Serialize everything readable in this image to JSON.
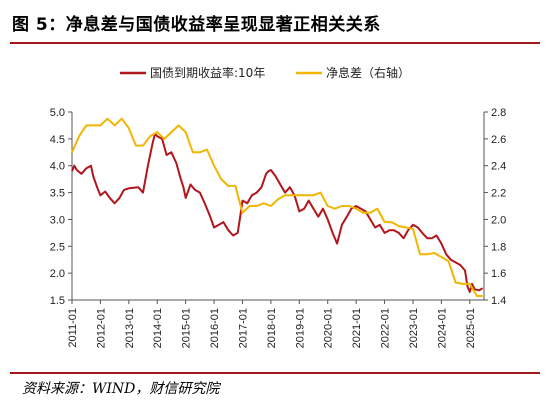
{
  "figure_title": "图 5：净息差与国债收益率呈现显著正相关关系",
  "source": "资料来源：WIND，财信研究院",
  "chart_data": {
    "type": "line",
    "x_ticks": [
      "2011-01",
      "2012-01",
      "2013-01",
      "2014-01",
      "2015-01",
      "2016-01",
      "2017-01",
      "2018-01",
      "2019-01",
      "2020-01",
      "2021-01",
      "2022-01",
      "2023-01",
      "2024-01",
      "2025-01"
    ],
    "x_range": [
      2011.0,
      2025.5
    ],
    "y_left": {
      "range": [
        1.5,
        5.0
      ],
      "ticks": [
        "1.5",
        "2.0",
        "2.5",
        "3.0",
        "3.5",
        "4.0",
        "4.5",
        "5.0"
      ]
    },
    "y_right": {
      "range": [
        1.4,
        2.8
      ],
      "ticks": [
        "1.4",
        "1.6",
        "1.8",
        "2.0",
        "2.2",
        "2.4",
        "2.6",
        "2.8"
      ]
    },
    "grid": false,
    "legend_position": "top",
    "series": [
      {
        "name": "国债到期收益率:10年",
        "axis": "left",
        "color": "#b0161c",
        "points": [
          [
            2011.0,
            3.9
          ],
          [
            2011.08,
            4.0
          ],
          [
            2011.17,
            3.92
          ],
          [
            2011.33,
            3.85
          ],
          [
            2011.5,
            3.95
          ],
          [
            2011.67,
            4.0
          ],
          [
            2011.75,
            3.8
          ],
          [
            2011.92,
            3.55
          ],
          [
            2012.0,
            3.45
          ],
          [
            2012.17,
            3.52
          ],
          [
            2012.33,
            3.4
          ],
          [
            2012.5,
            3.3
          ],
          [
            2012.67,
            3.4
          ],
          [
            2012.83,
            3.55
          ],
          [
            2013.0,
            3.58
          ],
          [
            2013.33,
            3.6
          ],
          [
            2013.5,
            3.5
          ],
          [
            2013.67,
            4.0
          ],
          [
            2013.83,
            4.4
          ],
          [
            2013.92,
            4.6
          ],
          [
            2014.0,
            4.55
          ],
          [
            2014.17,
            4.5
          ],
          [
            2014.33,
            4.2
          ],
          [
            2014.5,
            4.25
          ],
          [
            2014.67,
            4.05
          ],
          [
            2014.83,
            3.75
          ],
          [
            2014.92,
            3.6
          ],
          [
            2015.0,
            3.4
          ],
          [
            2015.17,
            3.65
          ],
          [
            2015.33,
            3.55
          ],
          [
            2015.5,
            3.5
          ],
          [
            2015.67,
            3.3
          ],
          [
            2015.83,
            3.1
          ],
          [
            2016.0,
            2.85
          ],
          [
            2016.17,
            2.9
          ],
          [
            2016.33,
            2.95
          ],
          [
            2016.5,
            2.8
          ],
          [
            2016.67,
            2.7
          ],
          [
            2016.83,
            2.75
          ],
          [
            2016.92,
            3.05
          ],
          [
            2017.0,
            3.35
          ],
          [
            2017.17,
            3.3
          ],
          [
            2017.33,
            3.45
          ],
          [
            2017.5,
            3.5
          ],
          [
            2017.67,
            3.6
          ],
          [
            2017.83,
            3.85
          ],
          [
            2017.92,
            3.9
          ],
          [
            2018.0,
            3.92
          ],
          [
            2018.17,
            3.8
          ],
          [
            2018.33,
            3.65
          ],
          [
            2018.5,
            3.5
          ],
          [
            2018.67,
            3.6
          ],
          [
            2018.83,
            3.45
          ],
          [
            2019.0,
            3.15
          ],
          [
            2019.17,
            3.2
          ],
          [
            2019.33,
            3.35
          ],
          [
            2019.5,
            3.2
          ],
          [
            2019.67,
            3.05
          ],
          [
            2019.83,
            3.2
          ],
          [
            2020.0,
            3.0
          ],
          [
            2020.17,
            2.75
          ],
          [
            2020.33,
            2.55
          ],
          [
            2020.5,
            2.9
          ],
          [
            2020.67,
            3.05
          ],
          [
            2020.83,
            3.2
          ],
          [
            2021.0,
            3.25
          ],
          [
            2021.17,
            3.2
          ],
          [
            2021.33,
            3.15
          ],
          [
            2021.5,
            3.0
          ],
          [
            2021.67,
            2.85
          ],
          [
            2021.83,
            2.9
          ],
          [
            2022.0,
            2.75
          ],
          [
            2022.17,
            2.8
          ],
          [
            2022.33,
            2.8
          ],
          [
            2022.5,
            2.75
          ],
          [
            2022.67,
            2.65
          ],
          [
            2022.83,
            2.8
          ],
          [
            2023.0,
            2.9
          ],
          [
            2023.17,
            2.85
          ],
          [
            2023.33,
            2.75
          ],
          [
            2023.5,
            2.65
          ],
          [
            2023.67,
            2.65
          ],
          [
            2023.83,
            2.7
          ],
          [
            2024.0,
            2.55
          ],
          [
            2024.17,
            2.35
          ],
          [
            2024.33,
            2.25
          ],
          [
            2024.5,
            2.2
          ],
          [
            2024.67,
            2.15
          ],
          [
            2024.83,
            2.05
          ],
          [
            2024.92,
            1.75
          ],
          [
            2025.0,
            1.65
          ],
          [
            2025.08,
            1.8
          ],
          [
            2025.17,
            1.7
          ],
          [
            2025.33,
            1.68
          ],
          [
            2025.45,
            1.72
          ]
        ]
      },
      {
        "name": "净息差（右轴）",
        "axis": "right",
        "color": "#f2b600",
        "points": [
          [
            2011.0,
            2.5
          ],
          [
            2011.25,
            2.62
          ],
          [
            2011.5,
            2.7
          ],
          [
            2011.75,
            2.7
          ],
          [
            2012.0,
            2.7
          ],
          [
            2012.25,
            2.75
          ],
          [
            2012.5,
            2.7
          ],
          [
            2012.75,
            2.75
          ],
          [
            2013.0,
            2.68
          ],
          [
            2013.25,
            2.55
          ],
          [
            2013.5,
            2.55
          ],
          [
            2013.75,
            2.62
          ],
          [
            2014.0,
            2.65
          ],
          [
            2014.25,
            2.6
          ],
          [
            2014.5,
            2.65
          ],
          [
            2014.75,
            2.7
          ],
          [
            2015.0,
            2.65
          ],
          [
            2015.25,
            2.5
          ],
          [
            2015.5,
            2.5
          ],
          [
            2015.75,
            2.52
          ],
          [
            2016.0,
            2.4
          ],
          [
            2016.25,
            2.3
          ],
          [
            2016.5,
            2.25
          ],
          [
            2016.75,
            2.25
          ],
          [
            2017.0,
            2.05
          ],
          [
            2017.25,
            2.1
          ],
          [
            2017.5,
            2.1
          ],
          [
            2017.75,
            2.12
          ],
          [
            2018.0,
            2.1
          ],
          [
            2018.25,
            2.15
          ],
          [
            2018.5,
            2.18
          ],
          [
            2018.75,
            2.18
          ],
          [
            2019.0,
            2.18
          ],
          [
            2019.25,
            2.18
          ],
          [
            2019.5,
            2.18
          ],
          [
            2019.75,
            2.2
          ],
          [
            2020.0,
            2.1
          ],
          [
            2020.25,
            2.08
          ],
          [
            2020.5,
            2.1
          ],
          [
            2020.75,
            2.1
          ],
          [
            2021.0,
            2.08
          ],
          [
            2021.25,
            2.05
          ],
          [
            2021.5,
            2.05
          ],
          [
            2021.75,
            2.08
          ],
          [
            2022.0,
            1.98
          ],
          [
            2022.25,
            1.98
          ],
          [
            2022.5,
            1.95
          ],
          [
            2022.75,
            1.94
          ],
          [
            2023.0,
            1.93
          ],
          [
            2023.25,
            1.74
          ],
          [
            2023.5,
            1.74
          ],
          [
            2023.75,
            1.75
          ],
          [
            2024.0,
            1.72
          ],
          [
            2024.25,
            1.69
          ],
          [
            2024.5,
            1.53
          ],
          [
            2024.75,
            1.52
          ],
          [
            2025.0,
            1.52
          ],
          [
            2025.25,
            1.43
          ],
          [
            2025.45,
            1.43
          ]
        ]
      }
    ]
  }
}
